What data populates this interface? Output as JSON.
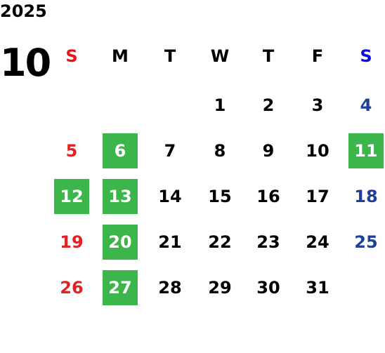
{
  "header": {
    "year": "2025",
    "month": "10"
  },
  "weekdays": [
    "S",
    "M",
    "T",
    "W",
    "T",
    "F",
    "S"
  ],
  "weeks": [
    [
      null,
      null,
      null,
      {
        "day": "1"
      },
      {
        "day": "2"
      },
      {
        "day": "3"
      },
      {
        "day": "4"
      }
    ],
    [
      {
        "day": "5"
      },
      {
        "day": "6",
        "highlight": true
      },
      {
        "day": "7"
      },
      {
        "day": "8"
      },
      {
        "day": "9"
      },
      {
        "day": "10"
      },
      {
        "day": "11",
        "highlight": true
      }
    ],
    [
      {
        "day": "12",
        "highlight": true
      },
      {
        "day": "13",
        "highlight": true
      },
      {
        "day": "14"
      },
      {
        "day": "15"
      },
      {
        "day": "16"
      },
      {
        "day": "17"
      },
      {
        "day": "18"
      }
    ],
    [
      {
        "day": "19"
      },
      {
        "day": "20",
        "highlight": true
      },
      {
        "day": "21"
      },
      {
        "day": "22"
      },
      {
        "day": "23"
      },
      {
        "day": "24"
      },
      {
        "day": "25"
      }
    ],
    [
      {
        "day": "26"
      },
      {
        "day": "27",
        "highlight": true
      },
      {
        "day": "28"
      },
      {
        "day": "29"
      },
      {
        "day": "30"
      },
      {
        "day": "31"
      },
      null
    ]
  ]
}
